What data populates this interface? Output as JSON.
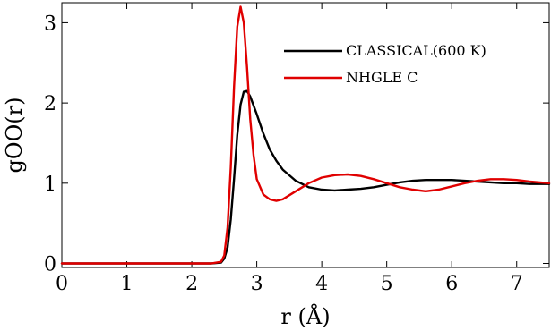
{
  "chart_data": {
    "type": "line",
    "xlabel": "r (Å)",
    "ylabel": "gOO(r)",
    "xlim": [
      0,
      7.5
    ],
    "ylim": [
      -0.05,
      3.25
    ],
    "grid": false,
    "legend_position": "top-right",
    "x_ticks": [
      0,
      1,
      2,
      3,
      4,
      5,
      6,
      7
    ],
    "y_ticks": [
      0,
      1,
      2,
      3
    ],
    "series": [
      {
        "name": "CLASSICAL(600 K)",
        "color": "#000000",
        "x": [
          0,
          2.3,
          2.45,
          2.5,
          2.55,
          2.6,
          2.65,
          2.7,
          2.75,
          2.8,
          2.85,
          2.9,
          3.0,
          3.1,
          3.2,
          3.3,
          3.4,
          3.6,
          3.8,
          4.0,
          4.2,
          4.4,
          4.6,
          4.8,
          5.0,
          5.2,
          5.4,
          5.6,
          5.8,
          6.0,
          6.2,
          6.4,
          6.6,
          6.8,
          7.0,
          7.2,
          7.5
        ],
        "y": [
          0,
          0,
          0.01,
          0.06,
          0.2,
          0.55,
          1.05,
          1.6,
          1.98,
          2.14,
          2.15,
          2.08,
          1.86,
          1.62,
          1.42,
          1.28,
          1.17,
          1.03,
          0.95,
          0.92,
          0.91,
          0.92,
          0.93,
          0.95,
          0.98,
          1.01,
          1.03,
          1.04,
          1.04,
          1.04,
          1.03,
          1.02,
          1.01,
          1.0,
          1.0,
          0.99,
          0.99
        ]
      },
      {
        "name": "NHGLE C",
        "color": "#e00000",
        "x": [
          0,
          2.3,
          2.45,
          2.5,
          2.55,
          2.6,
          2.65,
          2.7,
          2.75,
          2.8,
          2.85,
          2.9,
          2.95,
          3.0,
          3.1,
          3.2,
          3.3,
          3.4,
          3.6,
          3.8,
          4.0,
          4.2,
          4.4,
          4.6,
          4.8,
          5.0,
          5.2,
          5.4,
          5.6,
          5.8,
          6.0,
          6.2,
          6.4,
          6.6,
          6.8,
          7.0,
          7.2,
          7.5
        ],
        "y": [
          0,
          0,
          0.02,
          0.1,
          0.45,
          1.2,
          2.2,
          2.95,
          3.2,
          3.0,
          2.45,
          1.8,
          1.35,
          1.05,
          0.86,
          0.8,
          0.78,
          0.8,
          0.9,
          1.0,
          1.07,
          1.1,
          1.11,
          1.09,
          1.05,
          1.0,
          0.95,
          0.92,
          0.9,
          0.92,
          0.96,
          1.0,
          1.03,
          1.05,
          1.05,
          1.04,
          1.02,
          1.0
        ]
      }
    ]
  }
}
